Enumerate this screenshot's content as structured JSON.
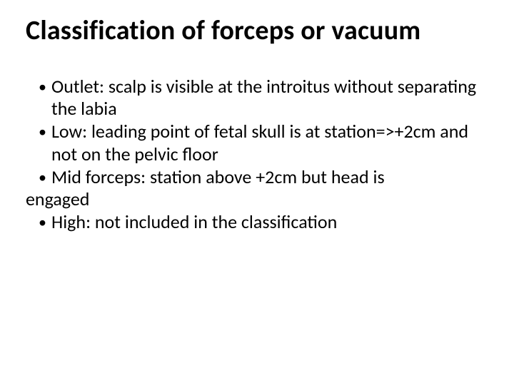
{
  "slide": {
    "background_color": "#ffffff",
    "text_color": "#000000",
    "title": {
      "text": "Classification of forceps or vacuum",
      "fontsize": 38,
      "weight": 700
    },
    "body": {
      "fontsize": 26,
      "bullet_glyph": "•",
      "items": [
        {
          "indented": true,
          "text": "Outlet: scalp is visible at the introitus without separating the labia"
        },
        {
          "indented": true,
          "text": "Low: leading point of fetal skull is at station=>+2cm and not on the pelvic floor"
        },
        {
          "indented": true,
          "text_line1": "Mid forceps: station above +2cm but head is",
          "text_line2": "engaged"
        },
        {
          "indented": true,
          "text": "High: not included in the classification"
        }
      ]
    }
  }
}
